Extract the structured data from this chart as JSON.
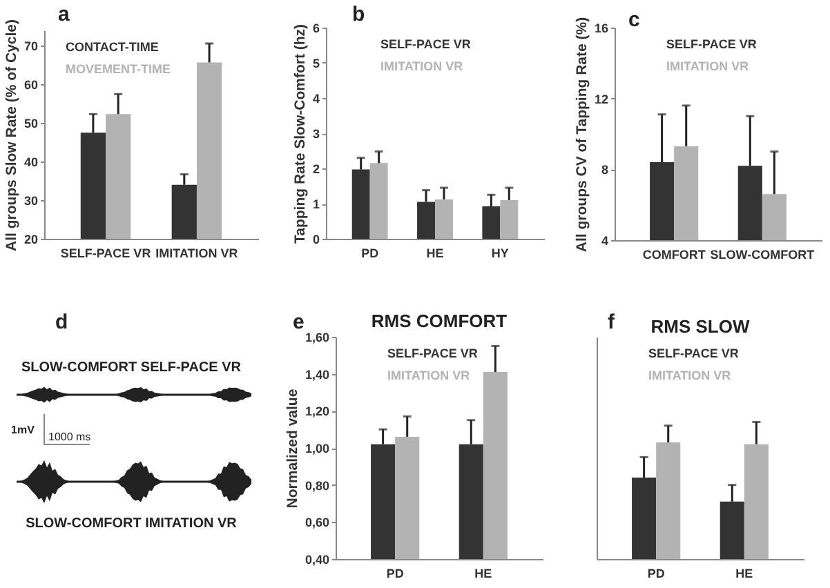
{
  "chart_data": [
    {
      "type": "bar",
      "annotations": [
        "a"
      ],
      "ylabel": "All groups Slow Rate (% of Cycle)",
      "categories": [
        "SELF-PACE VR",
        "IMITATION VR"
      ],
      "ylim": [
        20,
        74
      ],
      "yticks": [
        20,
        30,
        40,
        50,
        60,
        70
      ],
      "legend": "top left",
      "series": [
        {
          "name": "CONTACT-TIME",
          "color": "#333333",
          "values": [
            47.5,
            34
          ],
          "errors": [
            [
              47.5,
              52.3
            ],
            [
              34,
              36.7
            ]
          ]
        },
        {
          "name": "MOVEMENT-TIME",
          "color": "#b3b3b3",
          "values": [
            52.3,
            65.7
          ],
          "errors": [
            [
              52.3,
              57.5
            ],
            [
              65.7,
              70.6
            ]
          ]
        }
      ]
    },
    {
      "type": "bar",
      "annotations": [
        "b"
      ],
      "ylabel": "Tapping Rate Slow-Comfort (hz)",
      "categories": [
        "PD",
        "HE",
        "HY"
      ],
      "ylim": [
        0,
        6
      ],
      "yticks": [
        0,
        1,
        2,
        3,
        4,
        5,
        6
      ],
      "legend": "top",
      "series": [
        {
          "name": "SELF-PACE VR",
          "color": "#333333",
          "values": [
            1.97,
            1.05,
            0.92
          ],
          "errors": [
            [
              1.97,
              2.3
            ],
            [
              1.05,
              1.38
            ],
            [
              0.92,
              1.25
            ]
          ]
        },
        {
          "name": "IMITATION VR",
          "color": "#b3b3b3",
          "values": [
            2.15,
            1.12,
            1.1
          ],
          "errors": [
            [
              2.15,
              2.48
            ],
            [
              1.12,
              1.45
            ],
            [
              1.1,
              1.45
            ]
          ]
        }
      ]
    },
    {
      "type": "bar",
      "annotations": [
        "c"
      ],
      "ylabel": "All groups  CV of Tapping Rate (%)",
      "categories": [
        "COMFORT",
        "SLOW-COMFORT"
      ],
      "ylim": [
        4,
        16
      ],
      "yticks": [
        4,
        8,
        12,
        16
      ],
      "legend": "top",
      "series": [
        {
          "name": "SELF-PACE VR",
          "color": "#333333",
          "values": [
            8.4,
            8.2
          ],
          "errors": [
            [
              8.4,
              11.1
            ],
            [
              8.2,
              11.0
            ]
          ]
        },
        {
          "name": "IMITATION VR",
          "color": "#b3b3b3",
          "values": [
            9.3,
            6.6
          ],
          "errors": [
            [
              9.3,
              11.6
            ],
            [
              6.6,
              9.0
            ]
          ]
        }
      ]
    },
    {
      "type": "other",
      "annotations": [
        "d",
        "SLOW-COMFORT SELF-PACE VR",
        "1mV",
        "1000 ms",
        "SLOW-COMFORT IMITATION VR"
      ]
    },
    {
      "type": "bar",
      "title": "RMS COMFORT",
      "annotations": [
        "e"
      ],
      "ylabel": "Normalized value",
      "categories": [
        "PD",
        "HE"
      ],
      "ylim": [
        0.4,
        1.6
      ],
      "yticks": [
        {
          "value": 0.4,
          "label": "0,40"
        },
        {
          "value": 0.6,
          "label": "0,60"
        },
        {
          "value": 0.8,
          "label": "0,80"
        },
        {
          "value": 1.0,
          "label": "1,00"
        },
        {
          "value": 1.2,
          "label": "1,20"
        },
        {
          "value": 1.4,
          "label": "1,40"
        },
        {
          "value": 1.6,
          "label": "1,60"
        }
      ],
      "legend": "top",
      "series": [
        {
          "name": "SELF-PACE VR",
          "color": "#333333",
          "values": [
            1.02,
            1.02
          ],
          "errors": [
            [
              1.02,
              1.1
            ],
            [
              1.02,
              1.15
            ]
          ]
        },
        {
          "name": "IMITATION VR",
          "color": "#b3b3b3",
          "values": [
            1.06,
            1.41
          ],
          "errors": [
            [
              1.06,
              1.17
            ],
            [
              1.41,
              1.55
            ]
          ]
        }
      ]
    },
    {
      "type": "bar",
      "title": "RMS SLOW",
      "annotations": [
        "f"
      ],
      "categories": [
        "PD",
        "HE"
      ],
      "ylim": [
        0.4,
        1.6
      ],
      "tick_labels": "x",
      "legend": "top",
      "series": [
        {
          "name": "SELF-PACE VR",
          "color": "#333333",
          "values": [
            0.84,
            0.71
          ],
          "errors": [
            [
              0.84,
              0.95
            ],
            [
              0.71,
              0.8
            ]
          ]
        },
        {
          "name": "IMITATION VR",
          "color": "#b3b3b3",
          "values": [
            1.03,
            1.02
          ],
          "errors": [
            [
              1.03,
              1.12
            ],
            [
              1.02,
              1.14
            ]
          ]
        }
      ]
    }
  ]
}
